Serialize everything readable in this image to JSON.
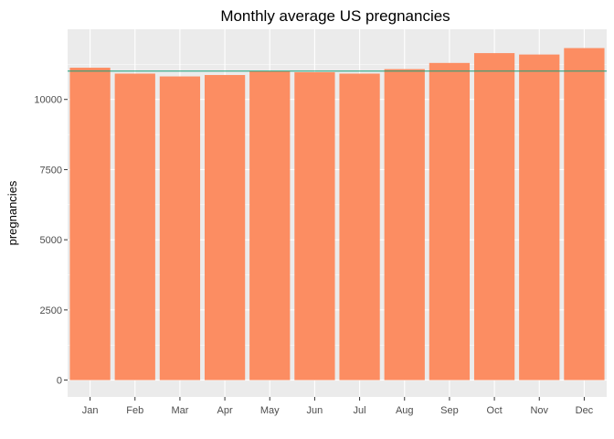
{
  "chart_data": {
    "type": "bar",
    "title": "Monthly average US pregnancies",
    "xlabel": "",
    "ylabel": "pregnancies",
    "categories": [
      "Jan",
      "Feb",
      "Mar",
      "Apr",
      "May",
      "Jun",
      "Jul",
      "Aug",
      "Sep",
      "Oct",
      "Nov",
      "Dec"
    ],
    "values": [
      11130,
      10920,
      10820,
      10870,
      11010,
      10970,
      10920,
      11080,
      11300,
      11650,
      11600,
      11830
    ],
    "reference_line": {
      "value": 11010,
      "color": "#1b9e77"
    },
    "ylim": [
      -600,
      12500
    ],
    "yticks": [
      0,
      2500,
      5000,
      7500,
      10000
    ],
    "ytick_labels": [
      "0",
      "2500",
      "5000",
      "7500",
      "10000"
    ],
    "grid": true,
    "colors": {
      "bar": "#fc8d62",
      "panel": "#ebebeb",
      "grid_major": "#ffffff",
      "reference_line": "#1b9e77"
    }
  }
}
